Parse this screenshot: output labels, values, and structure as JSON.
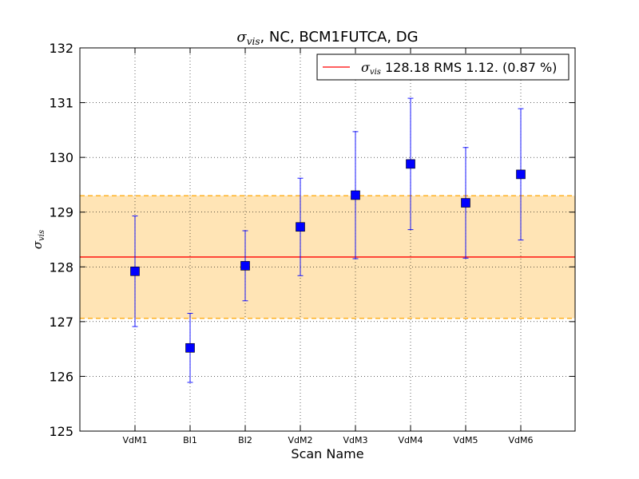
{
  "chart_data": {
    "type": "scatter",
    "title": {
      "symbol": "σ",
      "subscript": "vis",
      "rest": ", NC, BCM1FUTCA, DG"
    },
    "xlabel": "Scan Name",
    "ylabel": {
      "symbol": "σ",
      "subscript": "vis"
    },
    "categories": [
      "VdM1",
      "BI1",
      "BI2",
      "VdM2",
      "VdM3",
      "VdM4",
      "VdM5",
      "VdM6"
    ],
    "series": [
      {
        "values": [
          127.92,
          126.52,
          128.02,
          128.73,
          129.31,
          129.88,
          129.17,
          129.69
        ],
        "errors": [
          1.01,
          0.63,
          0.64,
          0.89,
          1.16,
          1.2,
          1.01,
          1.2
        ],
        "marker": "square",
        "color": "#0000ff"
      }
    ],
    "mean_line": {
      "value": 128.18,
      "color": "#ff0000"
    },
    "band": {
      "low": 127.06,
      "high": 129.3,
      "fill": "#ffe4b5",
      "edge": "#ffa500"
    },
    "legend": {
      "symbol": "σ",
      "subscript": "vis",
      "text": " 128.18 RMS 1.12. (0.87 %)",
      "placement": "top-right"
    },
    "ylim": [
      125,
      132
    ],
    "yticks": [
      "125",
      "126",
      "127",
      "128",
      "129",
      "130",
      "131",
      "132"
    ],
    "grid": true
  }
}
